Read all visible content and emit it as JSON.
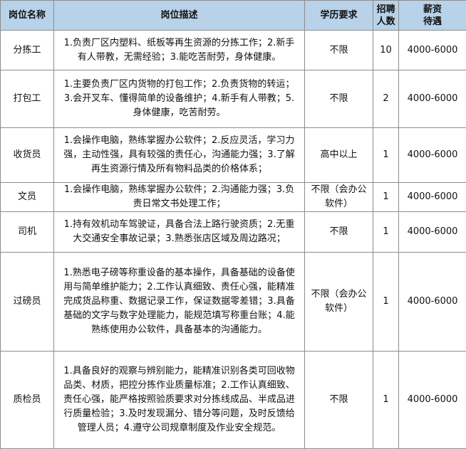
{
  "table": {
    "headers": [
      "岗位名称",
      "岗位描述",
      "学历要求",
      "招聘人数",
      "薪资待遇"
    ],
    "rows": [
      [
        "分拣工",
        "1.负责厂区内塑料、纸板等再生资源的分拣工作；2.新手有人带教，无需经验；3.能吃苦耐劳，身体健康。",
        "不限",
        "10",
        "4000-6000"
      ],
      [
        "打包工",
        "1.主要负责厂区内货物的打包工作；2.负责货物的转运；3.会开叉车、懂得简单的设备维护；4.新手有人带教；5.身体健康，吃苦耐劳。",
        "不限",
        "2",
        "4000-6000"
      ],
      [
        "收货员",
        "1.会操作电脑，熟练掌握办公软件；2.反应灵活，学习力强，主动性强，具有较强的责任心，沟通能力强；3.了解再生资源行情及所有物料品类的价格体系；",
        "高中以上",
        "1",
        "4000-6000"
      ],
      [
        "文员",
        "1.会操作电脑，熟练掌握办公软件；2.沟通能力强；3.负责日常文书处理工作；",
        "不限（会办公软件）",
        "1",
        "4000-6000"
      ],
      [
        "司机",
        "1.持有效机动车驾驶证，具备合法上路行驶资质；2.无重大交通安全事故记录；3.熟悉张店区域及周边路况；",
        "不限",
        "1",
        "4000-6000"
      ],
      [
        "过磅员",
        "1.熟悉电子磅等称重设备的基本操作，具备基础的设备使用与简单维护能力；2.工作认真细致、责任心强，能精准完成货品称重、数据记录工作，保证数据零差错；3.具备基础的文字与数字处理能力，能规范填写称重台账；4.能熟练使用办公软件，具备基本的沟通能力。",
        "不限（会办公软件）",
        "1",
        "4000-6000"
      ],
      [
        "质检员",
        "1.具备良好的观察与辨别能力，能精准识别各类可回收物品类、材质，把控分拣作业质量标准；2.工作认真细致、责任心强，能严格按照验质要求对分拣线成品、半成品进行质量检验；3.及时发现漏分、错分等问题，及时反馈给管理人员；4.遵守公司规章制度及作业安全规范。",
        "不限",
        "1",
        "4000-6000"
      ]
    ]
  }
}
